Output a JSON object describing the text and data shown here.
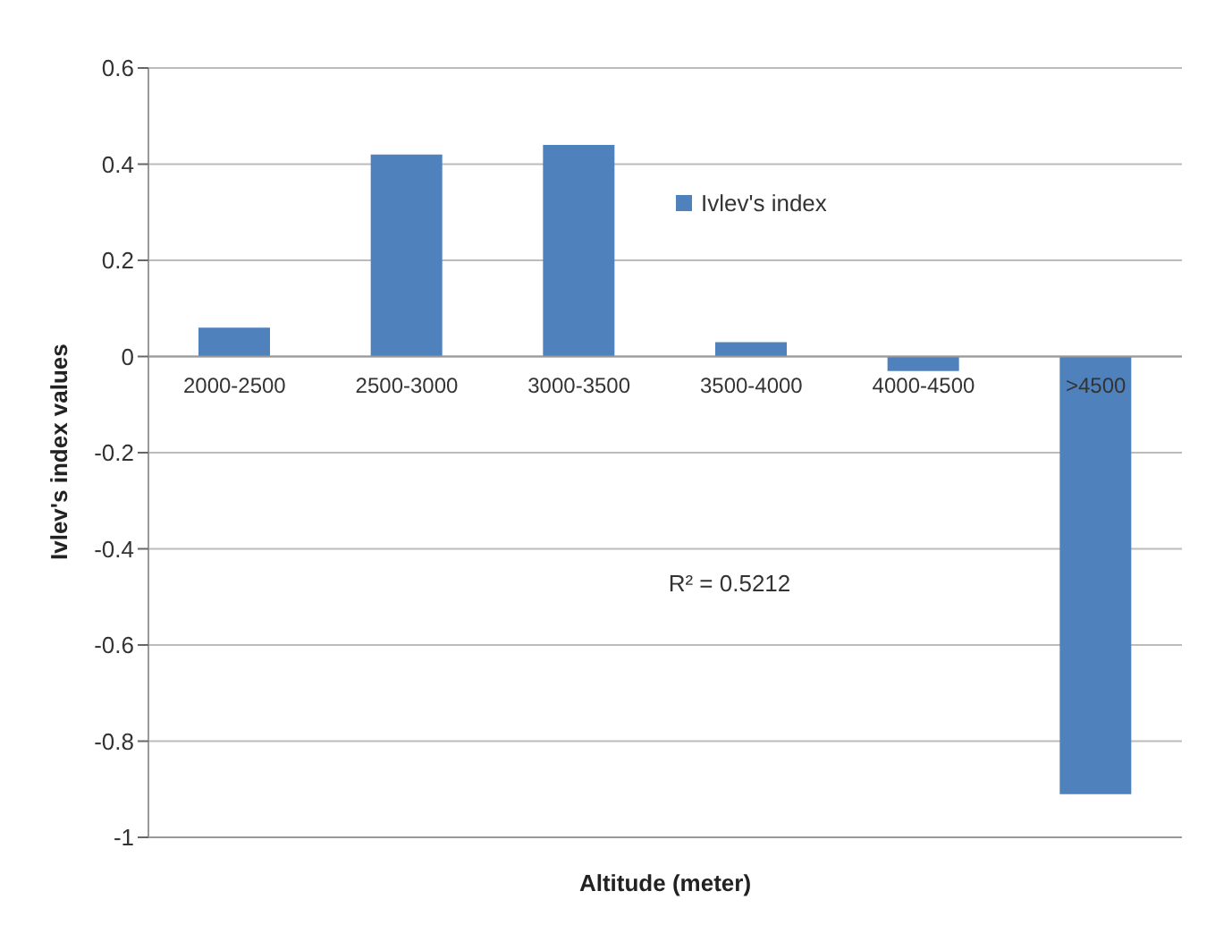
{
  "chart_data": {
    "type": "bar",
    "xlabel": "Altitude (meter)",
    "ylabel": "Ivlev's index values",
    "categories": [
      "2000-2500",
      "2500-3000",
      "3000-3500",
      "3500-4000",
      "4000-4500",
      ">4500"
    ],
    "series": [
      {
        "name": "Ivlev's index",
        "color": "#4f81bd",
        "values": [
          0.06,
          0.42,
          0.44,
          0.03,
          -0.03,
          -0.91
        ]
      }
    ],
    "ylim": [
      -1,
      0.6
    ],
    "yticks": [
      -1,
      -0.8,
      -0.6,
      -0.4,
      -0.2,
      0,
      0.2,
      0.4,
      0.6
    ],
    "grid": "y",
    "legend": "top right",
    "annotations": [
      "R² = 0.5212"
    ]
  }
}
